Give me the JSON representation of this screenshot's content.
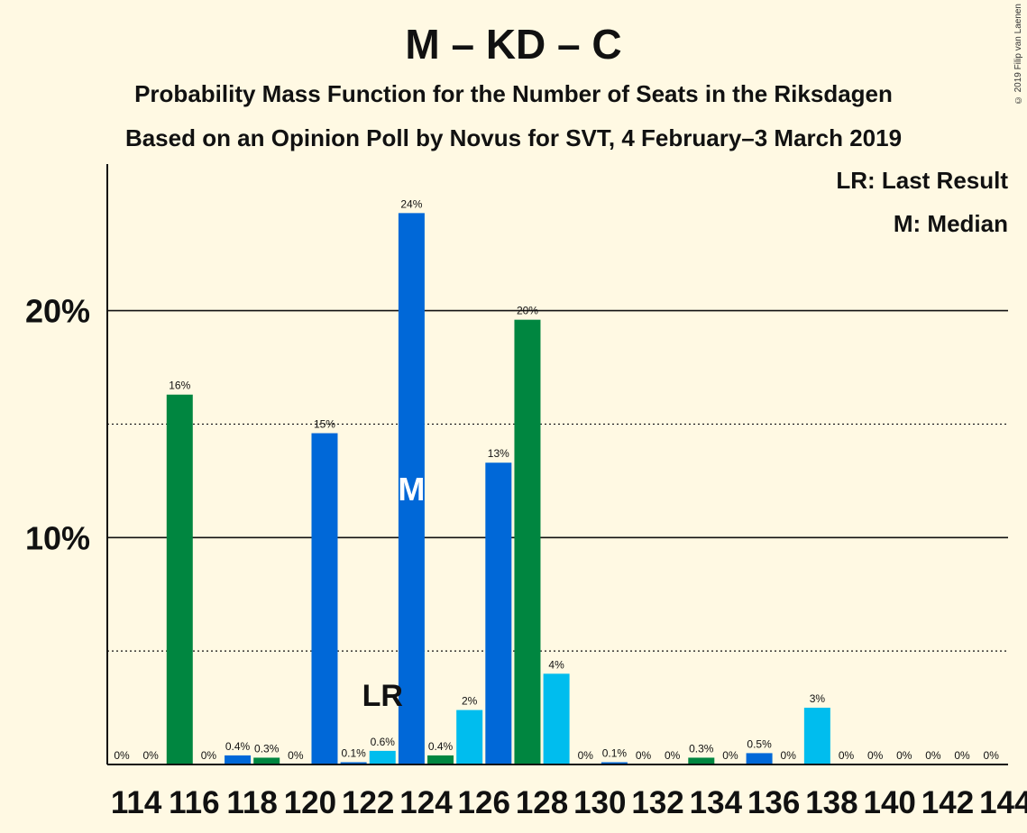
{
  "title": "M – KD – C",
  "subtitle": "Probability Mass Function for the Number of Seats in the Riksdagen",
  "subtitle2": "Based on an Opinion Poll by Novus for SVT, 4 February–3 March 2019",
  "copyright": "© 2019 Filip van Laenen",
  "legend": {
    "last_result": "LR: Last Result",
    "median": "M: Median"
  },
  "colors": {
    "background": "#fff9e3",
    "blue": "#0068d8",
    "green": "#008640",
    "light_blue": "#00bdee"
  },
  "chart_data": {
    "type": "bar",
    "x": [
      114,
      115,
      116,
      117,
      118,
      119,
      120,
      121,
      122,
      123,
      124,
      125,
      126,
      127,
      128,
      129,
      130,
      131,
      132,
      133,
      134,
      135,
      136,
      137,
      138,
      139,
      140,
      141,
      142,
      143,
      144
    ],
    "values": [
      0,
      0,
      16.3,
      0,
      0.4,
      0.3,
      0,
      14.6,
      0.1,
      0.6,
      24.3,
      0.4,
      2.4,
      13.3,
      19.6,
      4.0,
      0,
      0.1,
      0,
      0,
      0.3,
      0,
      0.5,
      0,
      2.5,
      0,
      0,
      0,
      0,
      0,
      0
    ],
    "labels": [
      "0%",
      "0%",
      "16%",
      "0%",
      "0.4%",
      "0.3%",
      "0%",
      "15%",
      "0.1%",
      "0.6%",
      "24%",
      "0.4%",
      "2%",
      "13%",
      "20%",
      "4%",
      "0%",
      "0.1%",
      "0%",
      "0%",
      "0.3%",
      "0%",
      "0.5%",
      "0%",
      "3%",
      "0%",
      "0%",
      "0%",
      "0%",
      "0%",
      "0%"
    ],
    "bar_colors": [
      "blue",
      "green",
      "green",
      "blue",
      "blue",
      "green",
      "blue",
      "blue",
      "blue",
      "light_blue",
      "blue",
      "green",
      "light_blue",
      "blue",
      "green",
      "light_blue",
      "blue",
      "blue",
      "blue",
      "blue",
      "green",
      "blue",
      "blue",
      "blue",
      "light_blue",
      "blue",
      "blue",
      "blue",
      "blue",
      "blue",
      "blue"
    ],
    "x_tick_labels": [
      "114",
      "116",
      "118",
      "120",
      "122",
      "124",
      "126",
      "128",
      "130",
      "132",
      "134",
      "136",
      "138",
      "140",
      "142",
      "144"
    ],
    "y_tick_labels": [
      "10%",
      "20%"
    ],
    "y_ticks": [
      10,
      20
    ],
    "y_minor_ticks": [
      5,
      15
    ],
    "ylim": [
      0,
      26.5
    ],
    "last_result": {
      "seat": 123,
      "label": "LR"
    },
    "median": {
      "seat": 124,
      "label": "M"
    },
    "grid": true
  }
}
